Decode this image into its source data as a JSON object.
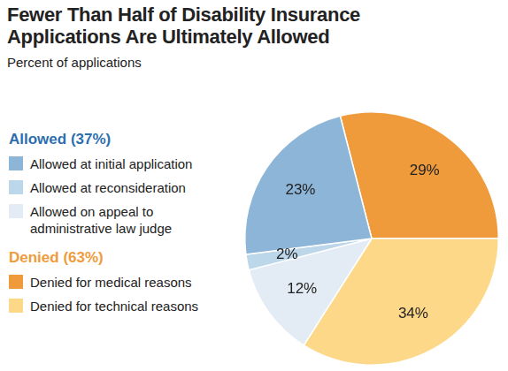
{
  "chart_data": {
    "type": "pie",
    "title": "Fewer Than Half of Disability Insurance Applications Are Ultimately Allowed",
    "subtitle": "Percent of applications",
    "categories": [
      "Denied for medical reasons",
      "Denied for technical reasons",
      "Allowed on appeal to administrative law judge",
      "Allowed at reconsideration",
      "Allowed at initial application"
    ],
    "values": [
      29,
      34,
      12,
      2,
      23
    ],
    "value_labels": [
      "29%",
      "34%",
      "12%",
      "2%",
      "23%"
    ],
    "colors": [
      "#ef9b3b",
      "#fdd889",
      "#e3ecf4",
      "#bcd6ea",
      "#8cb5d7"
    ],
    "data_labels": true,
    "legend": "left",
    "groups": [
      {
        "name": "Allowed (37%)",
        "color": "#2d6fae",
        "categories": [
          "Allowed at initial application",
          "Allowed at reconsideration",
          "Allowed on appeal to administrative law judge"
        ]
      },
      {
        "name": "Denied (63%)",
        "color": "#ef9b3b",
        "categories": [
          "Denied for medical reasons",
          "Denied for technical reasons"
        ]
      }
    ]
  }
}
